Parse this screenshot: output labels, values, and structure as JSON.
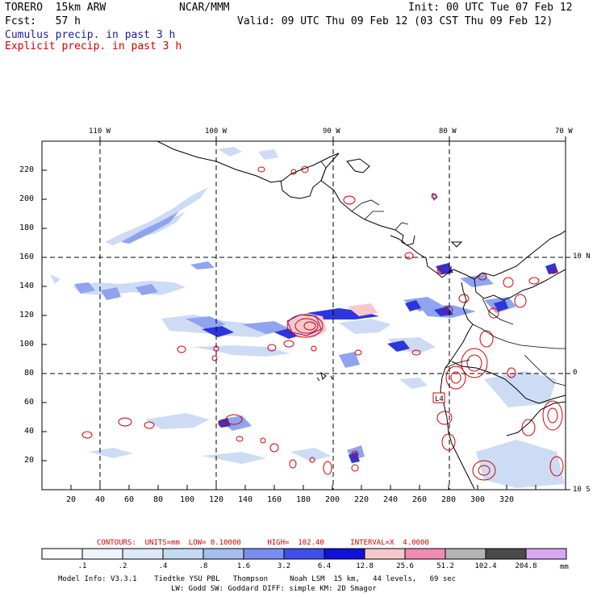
{
  "header": {
    "model": "TORERO  15km ARW",
    "org": "NCAR/MMM",
    "init": "Init: 00 UTC Tue 07 Feb 12",
    "fcst": "Fcst:   57 h",
    "valid": "Valid: 09 UTC Thu 09 Feb 12 (03 CST Thu 09 Feb 12)",
    "field1": "Cumulus precip. in past 3 h",
    "field2": "Explicit precip. in past 3 h",
    "field1_color": "#1a1aa8",
    "field2_color": "#d40000"
  },
  "map": {
    "lon_labels": [
      "110 W",
      "100 W",
      "90 W",
      "80 W",
      "70 W"
    ],
    "lat_labels": [
      "10 N",
      "0",
      "10 S"
    ],
    "x_ticks": [
      "20",
      "40",
      "60",
      "80",
      "100",
      "120",
      "140",
      "160",
      "180",
      "200",
      "220",
      "240",
      "260",
      "280",
      "300",
      "320"
    ],
    "y_ticks": [
      "20",
      "40",
      "60",
      "80",
      "100",
      "120",
      "140",
      "160",
      "180",
      "200",
      "220"
    ],
    "station_label": "L4"
  },
  "contours": {
    "text": "CONTOURS:  UNITS=mm  LOW= 0.10000      HIGH=  102.40      INTERVAL=X  4.0000",
    "color": "#d40000"
  },
  "colorbar": {
    "labels": [
      ".1",
      ".2",
      ".4",
      ".8",
      "1.6",
      "3.2",
      "6.4",
      "12.8",
      "25.6",
      "51.2",
      "102.4",
      "204.8"
    ],
    "unit": "mm",
    "colors": [
      "#ffffff",
      "#eef4fb",
      "#dde9f8",
      "#c6d9f3",
      "#a9bef0",
      "#7b8ef0",
      "#3f4fe8",
      "#1010d8",
      "#f6c8cc",
      "#f08cb4",
      "#b4b4b4",
      "#4a4a4a",
      "#d8a8f0"
    ]
  },
  "footer": {
    "line1": "Model Info: V3.3.1    Tiedtke YSU PBL   Thompson     Noah LSM  15 km,   44 levels,   69 sec",
    "line2": "LW: Godd SW: Goddard DIFF: simple KM: 2D Smagor"
  }
}
